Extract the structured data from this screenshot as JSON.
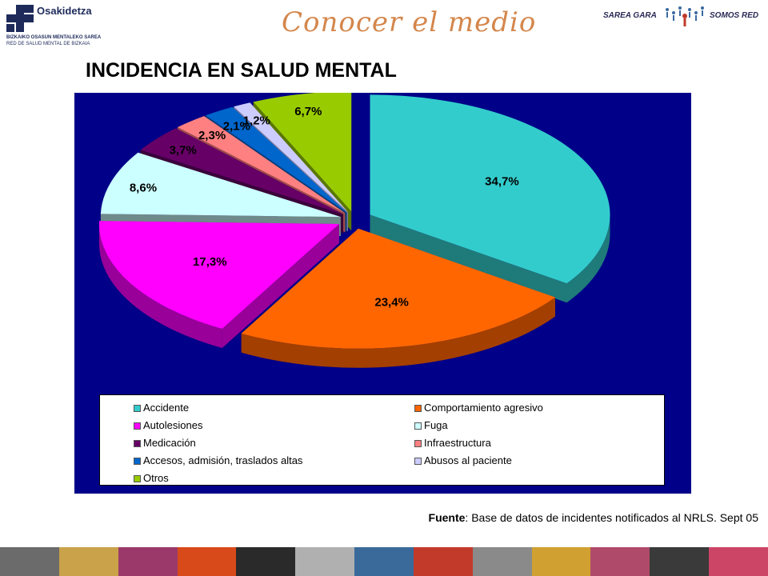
{
  "header": {
    "logo_name": "Osakidetza",
    "logo_subtitle_1": "BIZKAIKO OSASUN MENTALEKO SAREA",
    "logo_subtitle_2": "RED DE SALUD MENTAL DE BIZKAIA",
    "slide_title": "Conocer el medio",
    "network_left": "SAREA GARA",
    "network_right": "SOMOS RED"
  },
  "heading": "INCIDENCIA EN SALUD MENTAL",
  "chart_data": {
    "type": "pie",
    "title": "",
    "slices": [
      {
        "name": "Accidente",
        "value": 34.7,
        "label": "34,7%",
        "color": "#33CCCC",
        "side": "#1f7a7a"
      },
      {
        "name": "Comportamiento agresivo",
        "value": 23.4,
        "label": "23,4%",
        "color": "#FF6600",
        "side": "#a33f00"
      },
      {
        "name": "Autolesiones",
        "value": 17.3,
        "label": "17,3%",
        "color": "#FF00FF",
        "side": "#990099"
      },
      {
        "name": "Fuga",
        "value": 8.6,
        "label": "8,6%",
        "color": "#CCFFFF",
        "side": "#6f8a8a"
      },
      {
        "name": "Medicación",
        "value": 3.7,
        "label": "3,7%",
        "color": "#660066",
        "side": "#3a003a"
      },
      {
        "name": "Infraestructura",
        "value": 2.3,
        "label": "2,3%",
        "color": "#FF8080",
        "side": "#a04a4a"
      },
      {
        "name": "Accesos, admisión, traslados altas",
        "value": 2.1,
        "label": "2,1%",
        "color": "#0066CC",
        "side": "#003a77"
      },
      {
        "name": "Abusos al paciente",
        "value": 1.2,
        "label": "1,2%",
        "color": "#CCCCFF",
        "side": "#7a7aa0"
      },
      {
        "name": "Otros",
        "value": 6.7,
        "label": "6,7%",
        "color": "#99CC00",
        "side": "#5a7800"
      }
    ],
    "legend_placement": "bottom",
    "chart_background": "#000088"
  },
  "source": {
    "bold": "Fuente",
    "text": ": Base de datos de incidentes notificados al NRLS. Sept 05"
  },
  "strip_colors": [
    "#6b6b6b",
    "#c9a24a",
    "#9b3a6a",
    "#d94a1a",
    "#2a2a2a",
    "#b0b0b0",
    "#3a6a9a",
    "#c23a2a",
    "#8a8a8a",
    "#d0a030",
    "#b04a6a",
    "#3a3a3a",
    "#cc4466"
  ]
}
